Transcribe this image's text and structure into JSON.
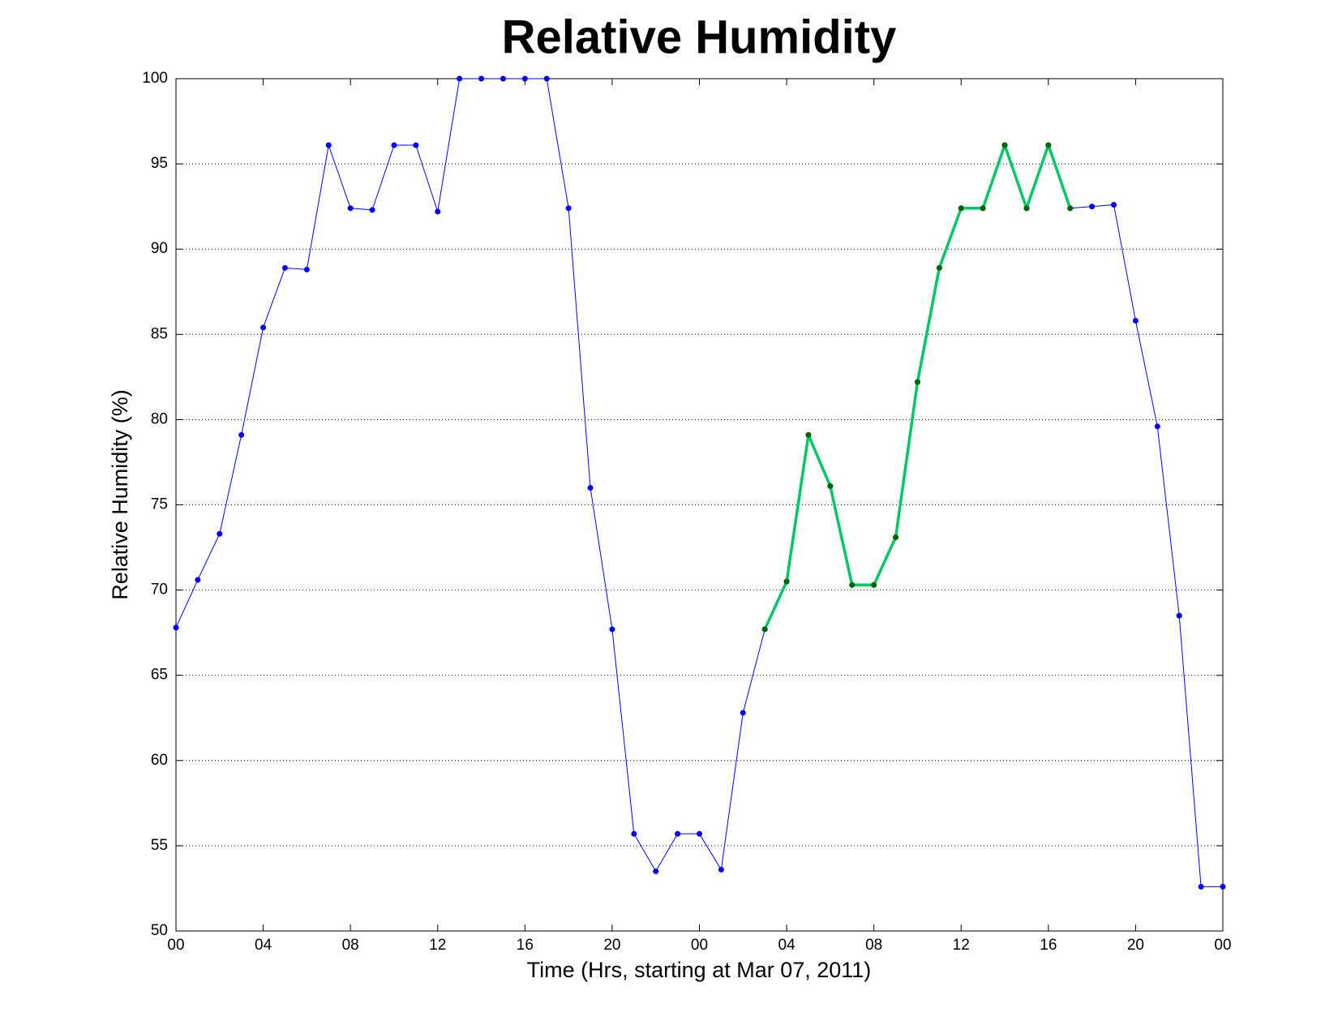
{
  "chart_data": {
    "type": "line",
    "title": "Relative Humidity",
    "x_label": "Time (Hrs, starting at Mar 07, 2011)",
    "y_label": "Relative Humidity (%)",
    "x": [
      0,
      1,
      2,
      3,
      4,
      5,
      6,
      7,
      8,
      9,
      10,
      11,
      12,
      13,
      14,
      15,
      16,
      17,
      18,
      19,
      20,
      21,
      22,
      23,
      24,
      25,
      26,
      27,
      28,
      29,
      30,
      31,
      32,
      33,
      34,
      35,
      36,
      37,
      38,
      39,
      40,
      41,
      42,
      43,
      44,
      45,
      46,
      47,
      48
    ],
    "series": [
      {
        "color": "#0000ff",
        "marker_color": "#0000ff",
        "line_width": 1,
        "values": [
          67.8,
          70.6,
          73.3,
          79.1,
          85.4,
          88.9,
          88.8,
          96.1,
          92.4,
          92.3,
          96.1,
          96.1,
          92.2,
          100,
          100,
          100,
          100,
          100,
          92.4,
          76.0,
          67.7,
          55.7,
          53.5,
          55.7,
          55.7,
          53.6,
          62.8,
          67.7,
          70.5,
          79.1,
          76.1,
          70.3,
          70.3,
          73.1,
          82.2,
          88.9,
          92.4,
          92.4,
          96.1,
          92.4,
          96.1,
          92.4,
          92.5,
          92.6,
          85.8,
          79.6,
          68.5,
          52.6,
          52.6
        ]
      },
      {
        "color": "#00c864",
        "marker_color": "#006400",
        "line_width": 3.5,
        "values": [
          null,
          null,
          null,
          null,
          null,
          null,
          null,
          null,
          null,
          null,
          null,
          null,
          null,
          null,
          null,
          null,
          null,
          null,
          null,
          null,
          null,
          null,
          null,
          null,
          null,
          null,
          null,
          67.7,
          70.5,
          79.1,
          76.1,
          70.3,
          70.3,
          73.1,
          82.2,
          88.9,
          92.4,
          92.4,
          96.1,
          92.4,
          96.1,
          92.4,
          null,
          null,
          null,
          null,
          null,
          null,
          null
        ]
      }
    ],
    "xlim": [
      0,
      48
    ],
    "xticks": [
      {
        "value": 0,
        "label": "00"
      },
      {
        "value": 4,
        "label": "04"
      },
      {
        "value": 8,
        "label": "08"
      },
      {
        "value": 12,
        "label": "12"
      },
      {
        "value": 16,
        "label": "16"
      },
      {
        "value": 20,
        "label": "20"
      },
      {
        "value": 24,
        "label": "00"
      },
      {
        "value": 28,
        "label": "04"
      },
      {
        "value": 32,
        "label": "08"
      },
      {
        "value": 36,
        "label": "12"
      },
      {
        "value": 40,
        "label": "16"
      },
      {
        "value": 44,
        "label": "20"
      },
      {
        "value": 48,
        "label": "00"
      }
    ],
    "ylim": [
      50,
      100
    ],
    "yticks": [
      50,
      55,
      60,
      65,
      70,
      75,
      80,
      85,
      90,
      95,
      100
    ],
    "grid": true
  }
}
